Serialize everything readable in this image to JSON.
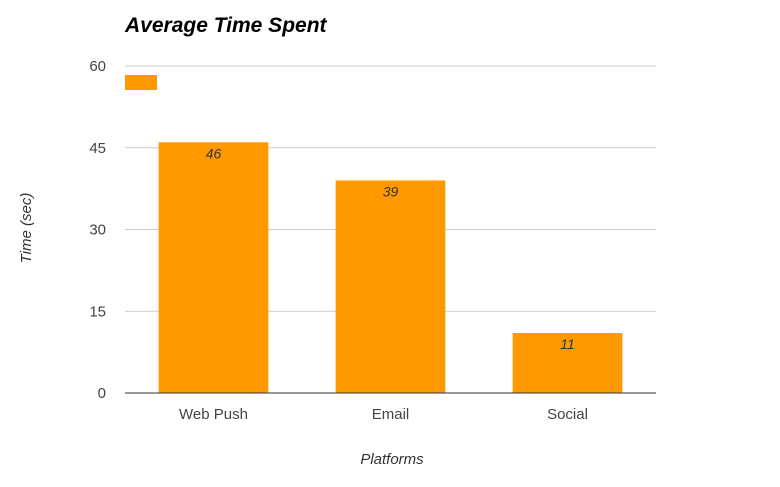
{
  "chart_data": {
    "type": "bar",
    "title": "Average Time Spent",
    "xlabel": "Platforms",
    "ylabel": "Time (sec)",
    "categories": [
      "Web Push",
      "Email",
      "Social"
    ],
    "values": [
      46,
      39,
      11
    ],
    "data_labels": [
      "46",
      "39",
      "11"
    ],
    "ylim": [
      0,
      60
    ],
    "yticks": [
      0,
      15,
      30,
      45,
      60
    ],
    "grid": true,
    "legend": "top-left",
    "bar_color": "#ff9900"
  }
}
